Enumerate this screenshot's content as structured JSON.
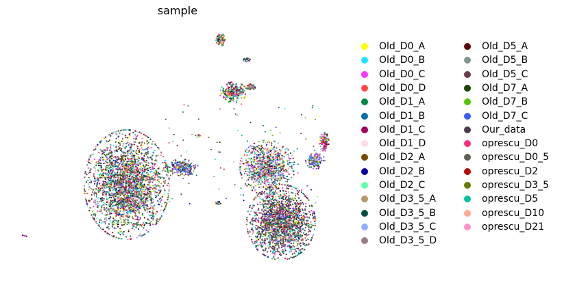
{
  "chart_data": {
    "type": "scatter",
    "title": "sample",
    "xlabel": "",
    "ylabel": "",
    "axes_visible": false,
    "grid": false,
    "legend_placement": "right, outside plot, 2 columns",
    "series": [
      {
        "name": "Old_D0_A",
        "color": "#ffff00"
      },
      {
        "name": "Old_D0_B",
        "color": "#1ce6ff"
      },
      {
        "name": "Old_D0_C",
        "color": "#ff34ff"
      },
      {
        "name": "Old_D0_D",
        "color": "#ff4a46"
      },
      {
        "name": "Old_D1_A",
        "color": "#008941"
      },
      {
        "name": "Old_D1_B",
        "color": "#006fa6"
      },
      {
        "name": "Old_D1_C",
        "color": "#a30059"
      },
      {
        "name": "Old_D1_D",
        "color": "#ffdbe5"
      },
      {
        "name": "Old_D2_A",
        "color": "#7a4900"
      },
      {
        "name": "Old_D2_B",
        "color": "#0000a6"
      },
      {
        "name": "Old_D2_C",
        "color": "#63ffac"
      },
      {
        "name": "Old_D3_5_A",
        "color": "#b79762"
      },
      {
        "name": "Old_D3_5_B",
        "color": "#004d43"
      },
      {
        "name": "Old_D3_5_C",
        "color": "#8fb0ff"
      },
      {
        "name": "Old_D3_5_D",
        "color": "#997d87"
      },
      {
        "name": "Old_D5_A",
        "color": "#5a0007"
      },
      {
        "name": "Old_D5_B",
        "color": "#809693"
      },
      {
        "name": "Old_D5_C",
        "color": "#6a3a4c"
      },
      {
        "name": "Old_D7_A",
        "color": "#1b4400"
      },
      {
        "name": "Old_D7_B",
        "color": "#4fc601"
      },
      {
        "name": "Old_D7_C",
        "color": "#3b5dff"
      },
      {
        "name": "Our_data",
        "color": "#4a3b53"
      },
      {
        "name": "oprescu_D0",
        "color": "#ff2f80"
      },
      {
        "name": "oprescu_D0_5",
        "color": "#61615a"
      },
      {
        "name": "oprescu_D2",
        "color": "#ba0900"
      },
      {
        "name": "oprescu_D3_5",
        "color": "#6b7900"
      },
      {
        "name": "oprescu_D5",
        "color": "#00c2a0"
      },
      {
        "name": "oprescu_D10",
        "color": "#ffaa92"
      },
      {
        "name": "oprescu_D21",
        "color": "#ff90c9"
      }
    ]
  }
}
